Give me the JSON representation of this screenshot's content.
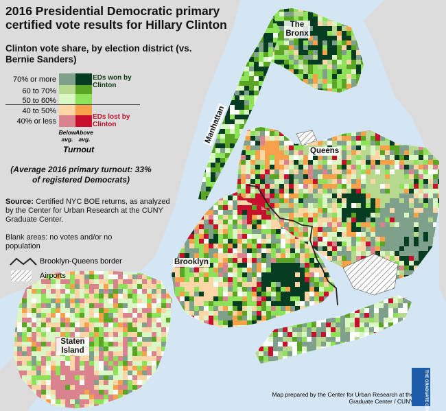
{
  "title": "2016 Presidential Democratic primary certified vote results for Hillary Clinton",
  "subtitle": "Clinton vote share, by election district (vs. Bernie Sanders)",
  "legend": {
    "rows": [
      {
        "label": "70% or more",
        "below": "#7fa08a",
        "above": "#063c22"
      },
      {
        "label": "60 to 70%",
        "below": "#b7d88f",
        "above": "#5aa524"
      },
      {
        "label": "50 to 60%",
        "below": "#dcf7c6",
        "above": "#8de25a"
      },
      {
        "label": "40 to 50%",
        "below": "#fdd6a8",
        "above": "#f7a14a"
      },
      {
        "label": "40% or less",
        "below": "#d9838f",
        "above": "#c8102e"
      }
    ],
    "won_label": "EDs won by Clinton",
    "lost_label": "EDs lost by Clinton",
    "below_label": "Below avg.",
    "above_label": "Above avg.",
    "turnout_label": "Turnout"
  },
  "avg_note": "(Average 2016 primary turnout: 33% of registered Democrats)",
  "source": {
    "label": "Source:",
    "text": "Certified NYC BOE returns, as analyzed by the Center for Urban Research at the CUNY Graduate Center."
  },
  "blank_note": "Blank areas: no votes and/or no population",
  "border_label": "Brooklyn-Queens border",
  "airports_label": "Airports",
  "boroughs": {
    "bronx": "The Bronx",
    "manhattan": "Manhattan",
    "queens": "Queens",
    "brooklyn": "Brooklyn",
    "staten": "Staten Island"
  },
  "credit": "Map prepared by the Center for Urban Research at the Graduate Center / CUNY",
  "logo_text": "THE GRADUATE CENTER CITY UNIVERSITY OF NEW YORK",
  "colors": {
    "water": "#d4e6f4",
    "non_nyc_land": "#dcdcdc",
    "blank": "#ffffff"
  }
}
